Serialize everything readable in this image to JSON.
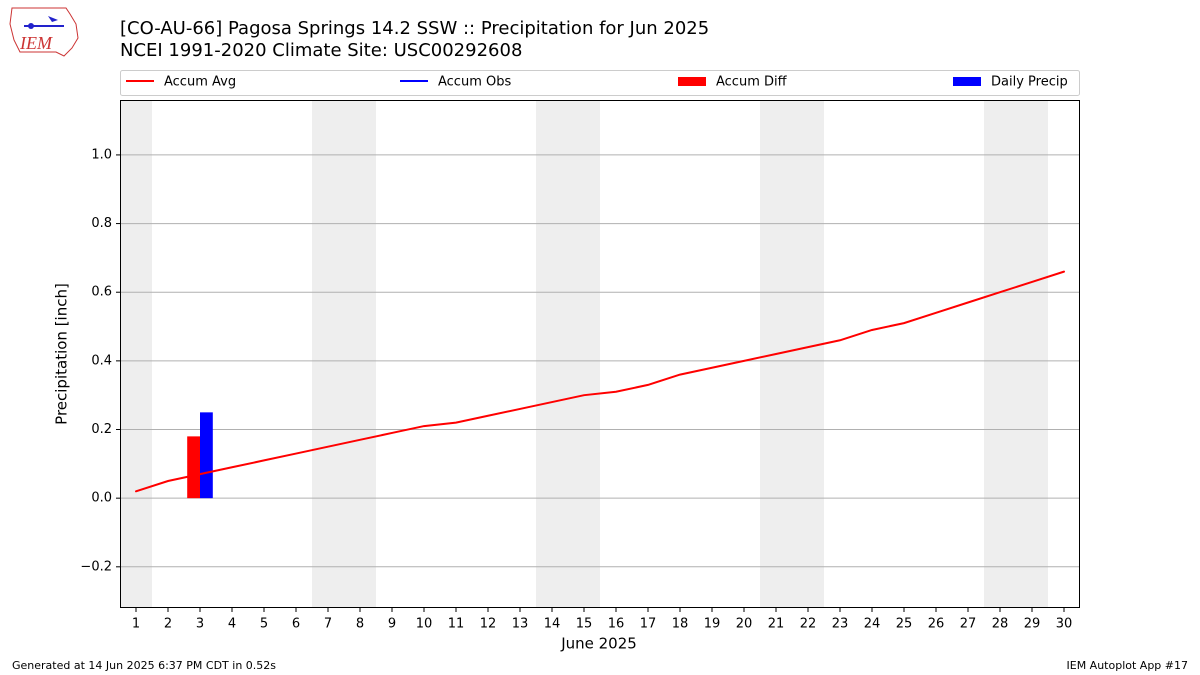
{
  "logo_text": "IEM",
  "footer_left": "Generated at 14 Jun 2025 6:37 PM CDT in 0.52s",
  "footer_right": "IEM Autoplot App #17",
  "chart_data": {
    "type": "combo",
    "title": "[CO-AU-66] Pagosa Springs 14.2 SSW :: Precipitation for Jun 2025",
    "subtitle": "NCEI 1991-2020 Climate Site: USC00292608",
    "x_label": "June 2025",
    "y_label": "Precipitation [inch]",
    "x": [
      1,
      2,
      3,
      4,
      5,
      6,
      7,
      8,
      9,
      10,
      11,
      12,
      13,
      14,
      15,
      16,
      17,
      18,
      19,
      20,
      21,
      22,
      23,
      24,
      25,
      26,
      27,
      28,
      29,
      30
    ],
    "shaded_days": [
      1,
      7,
      8,
      14,
      15,
      21,
      22,
      28,
      29
    ],
    "series": [
      {
        "name": "Accum Avg",
        "kind": "line",
        "color": "#ff0000",
        "values": [
          0.02,
          0.05,
          0.07,
          0.09,
          0.11,
          0.13,
          0.15,
          0.17,
          0.19,
          0.21,
          0.22,
          0.24,
          0.26,
          0.28,
          0.3,
          0.31,
          0.33,
          0.36,
          0.38,
          0.4,
          0.42,
          0.44,
          0.46,
          0.49,
          0.51,
          0.54,
          0.57,
          0.6,
          0.63,
          0.66
        ]
      },
      {
        "name": "Accum Obs",
        "kind": "line",
        "color": "#0000ff",
        "values": [
          null,
          null,
          0.25,
          null,
          null,
          null,
          null,
          null,
          null,
          null,
          null,
          null,
          null,
          null,
          null,
          null,
          null,
          null,
          null,
          null,
          null,
          null,
          null,
          null,
          null,
          null,
          null,
          null,
          null,
          null
        ]
      },
      {
        "name": "Accum Diff",
        "kind": "bar",
        "offset": "left",
        "color": "#ff0000",
        "values": [
          null,
          null,
          0.18,
          null,
          null,
          null,
          null,
          null,
          null,
          null,
          null,
          null,
          null,
          null,
          null,
          null,
          null,
          null,
          null,
          null,
          null,
          null,
          null,
          null,
          null,
          null,
          null,
          null,
          null,
          null
        ]
      },
      {
        "name": "Daily Precip",
        "kind": "bar",
        "offset": "right",
        "color": "#0000ff",
        "values": [
          null,
          null,
          0.25,
          null,
          null,
          null,
          null,
          null,
          null,
          null,
          null,
          null,
          null,
          null,
          null,
          null,
          null,
          null,
          null,
          null,
          null,
          null,
          null,
          null,
          null,
          null,
          null,
          null,
          null,
          null
        ]
      }
    ],
    "xlim": [
      0.5,
      30.5
    ],
    "ylim": [
      -0.32,
      1.16
    ],
    "xticks": [
      1,
      2,
      3,
      4,
      5,
      6,
      7,
      8,
      9,
      10,
      11,
      12,
      13,
      14,
      15,
      16,
      17,
      18,
      19,
      20,
      21,
      22,
      23,
      24,
      25,
      26,
      27,
      28,
      29,
      30
    ],
    "yticks": [
      {
        "value": -0.2,
        "label": "−0.2"
      },
      {
        "value": 0,
        "label": "0.0"
      },
      {
        "value": 0.2,
        "label": "0.2"
      },
      {
        "value": 0.4,
        "label": "0.4"
      },
      {
        "value": 0.6,
        "label": "0.6"
      },
      {
        "value": 0.8,
        "label": "0.8"
      },
      {
        "value": 1.0,
        "label": "1.0"
      }
    ],
    "grid": "y",
    "legend": "top"
  }
}
